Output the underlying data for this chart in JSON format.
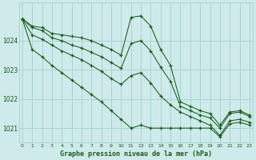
{
  "background_color": "#ceeaea",
  "grid_color": "#aad4d4",
  "line_color": "#1a5c1a",
  "xlabel": "Graphe pression niveau de la mer (hPa)",
  "x": [
    0,
    1,
    2,
    3,
    4,
    5,
    6,
    7,
    8,
    9,
    10,
    11,
    12,
    13,
    14,
    15,
    16,
    17,
    18,
    19,
    20,
    21,
    22,
    23
  ],
  "series1": [
    1024.75,
    1024.5,
    1024.45,
    1024.25,
    1024.2,
    1024.15,
    1024.1,
    1024.0,
    1023.85,
    1023.7,
    1023.5,
    1024.8,
    1024.85,
    1024.5,
    1023.7,
    1023.15,
    1021.9,
    1021.75,
    1021.6,
    1021.5,
    1021.1,
    1021.55,
    1021.6,
    1021.45
  ],
  "series2": [
    1024.75,
    1024.45,
    1024.35,
    1024.1,
    1024.0,
    1023.85,
    1023.75,
    1023.6,
    1023.45,
    1023.25,
    1023.05,
    1023.9,
    1024.0,
    1023.65,
    1023.1,
    1022.6,
    1021.75,
    1021.6,
    1021.45,
    1021.35,
    1021.0,
    1021.5,
    1021.55,
    1021.4
  ],
  "series3": [
    1024.75,
    1024.2,
    1024.05,
    1023.85,
    1023.65,
    1023.5,
    1023.35,
    1023.15,
    1022.95,
    1022.7,
    1022.5,
    1022.8,
    1022.9,
    1022.55,
    1022.1,
    1021.8,
    1021.55,
    1021.4,
    1021.25,
    1021.1,
    1020.75,
    1021.25,
    1021.3,
    1021.2
  ],
  "series4": [
    1024.75,
    1023.7,
    1023.45,
    1023.15,
    1022.9,
    1022.65,
    1022.4,
    1022.15,
    1021.9,
    1021.6,
    1021.3,
    1021.0,
    1021.1,
    1021.0,
    1021.0,
    1021.0,
    1021.0,
    1021.0,
    1021.0,
    1021.0,
    1020.7,
    1021.15,
    1021.2,
    1021.1
  ],
  "ylim_min": 1020.5,
  "ylim_max": 1025.3,
  "yticks": [
    1021,
    1022,
    1023,
    1024
  ],
  "xticks": [
    0,
    1,
    2,
    3,
    4,
    5,
    6,
    7,
    8,
    9,
    10,
    11,
    12,
    13,
    14,
    15,
    16,
    17,
    18,
    19,
    20,
    21,
    22,
    23
  ]
}
